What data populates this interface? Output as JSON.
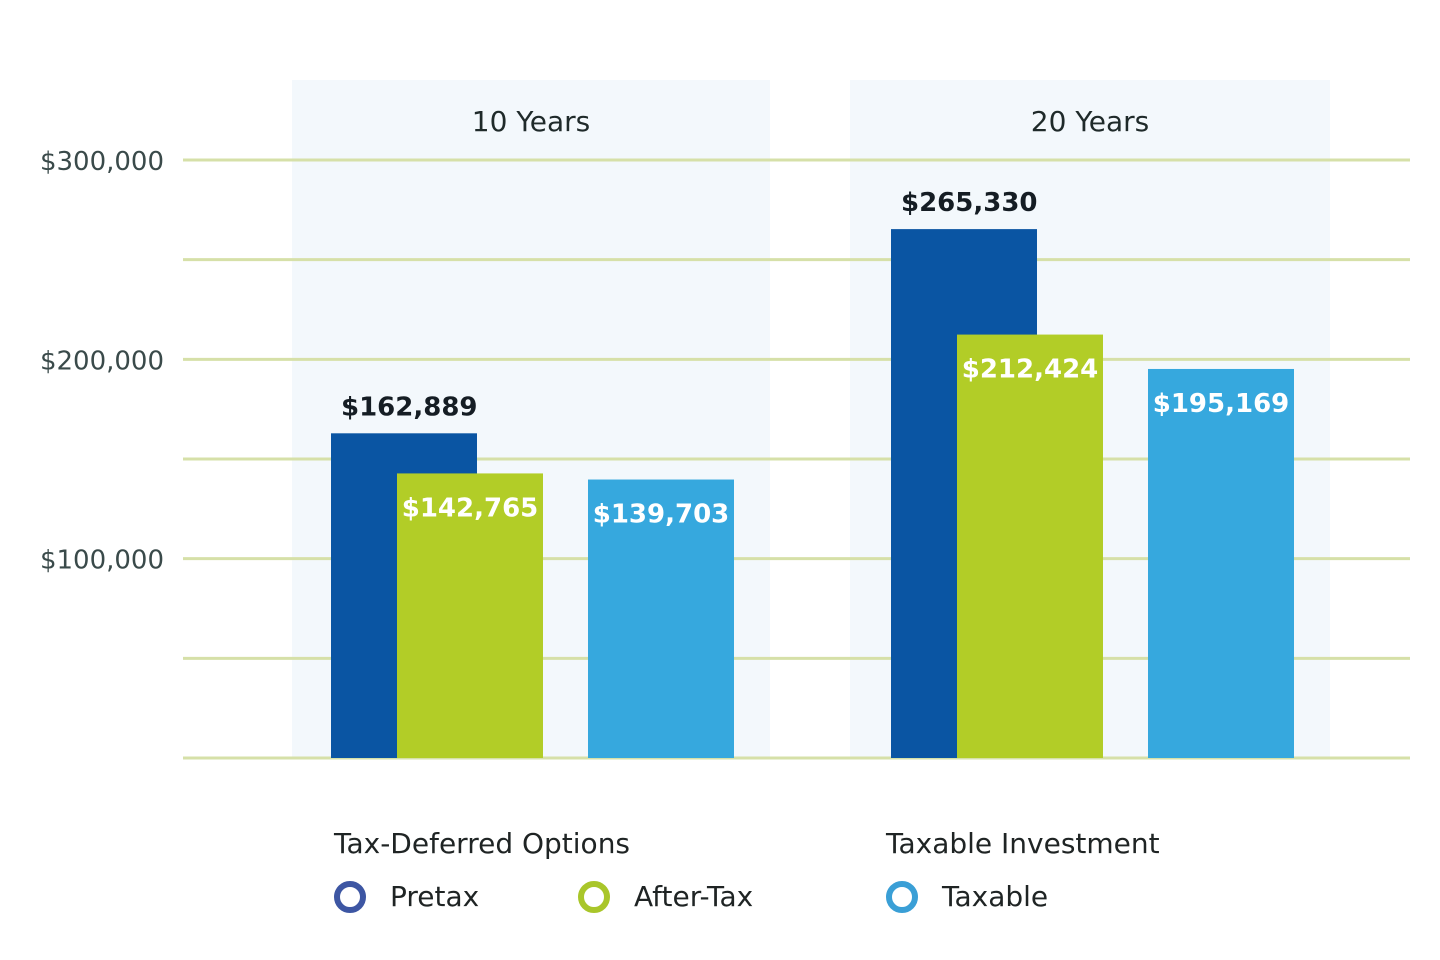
{
  "chart_data": {
    "type": "bar",
    "title": "",
    "xlabel": "",
    "ylabel": "",
    "ylim": [
      0,
      300000
    ],
    "yticks": [
      100000,
      200000,
      300000
    ],
    "ytick_labels": [
      "$100,000",
      "$200,000",
      "$300,000"
    ],
    "gridlines": [
      0,
      50000,
      100000,
      150000,
      200000,
      250000,
      300000
    ],
    "grid": true,
    "categories": [
      "10 Years",
      "20 Years"
    ],
    "series": [
      {
        "name": "Pretax",
        "group": "Tax-Deferred Options",
        "color": "#0a55a3",
        "values": [
          162889,
          265330
        ],
        "labels": [
          "$162,889",
          "$265,330"
        ]
      },
      {
        "name": "After-Tax",
        "group": "Tax-Deferred Options",
        "color": "#b2cd27",
        "values": [
          142765,
          212424
        ],
        "labels": [
          "$142,765",
          "$212,424"
        ]
      },
      {
        "name": "Taxable",
        "group": "Taxable Investment",
        "color": "#36a8de",
        "values": [
          139703,
          195169
        ],
        "labels": [
          "$139,703",
          "$195,169"
        ]
      }
    ],
    "legend_placement": "bottom",
    "legend": {
      "groups": [
        {
          "title": "Tax-Deferred Options",
          "items": [
            {
              "label": "Pretax",
              "color": "#3d56a3"
            },
            {
              "label": "After-Tax",
              "color": "#a9c62a"
            }
          ]
        },
        {
          "title": "Taxable Investment",
          "items": [
            {
              "label": "Taxable",
              "color": "#3a9fd6"
            }
          ]
        }
      ]
    },
    "colors": {
      "gridline": "#d6e0a8",
      "panel_background": "#f3f8fc"
    }
  }
}
